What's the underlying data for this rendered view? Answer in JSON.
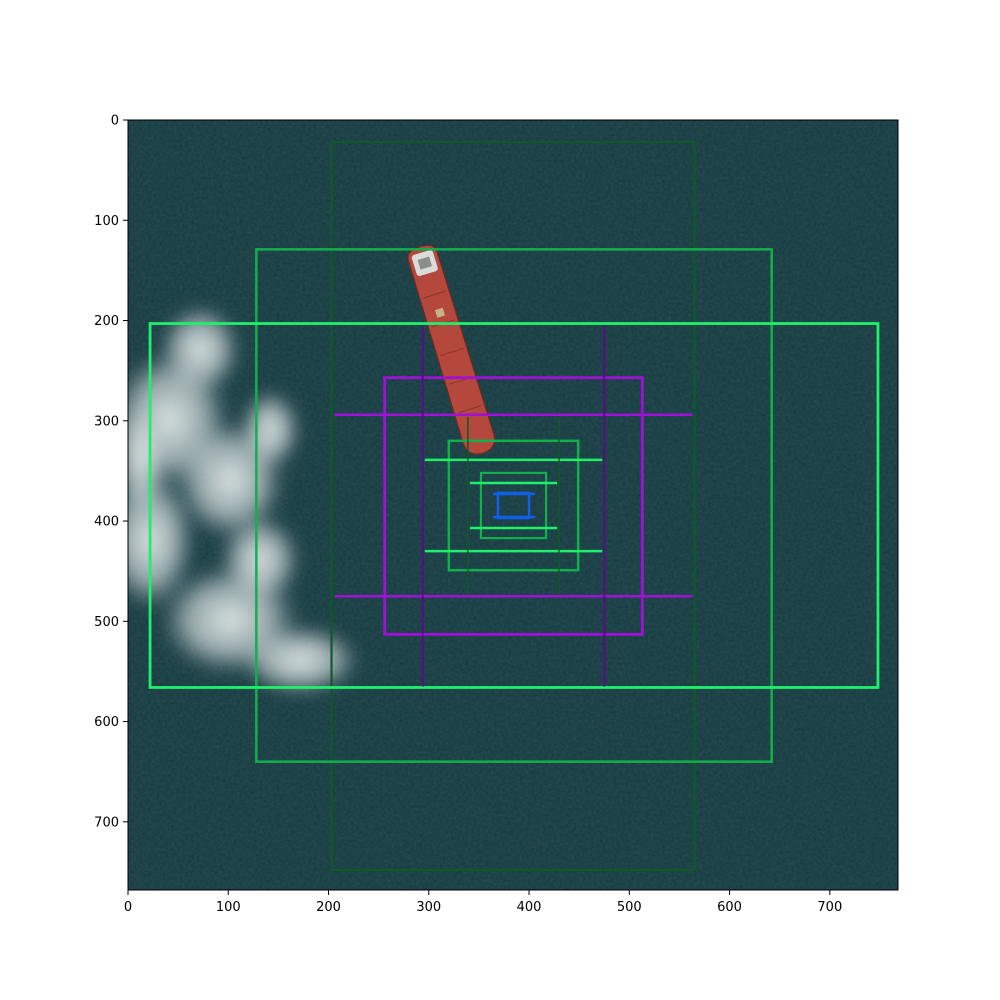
{
  "image": {
    "description_hidden": "",
    "width_units": 768,
    "height_units": 768
  },
  "axes": {
    "xlim": [
      0,
      768
    ],
    "ylim": [
      768,
      0
    ],
    "x_ticks": [
      0,
      100,
      200,
      300,
      400,
      500,
      600,
      700
    ],
    "y_ticks": [
      0,
      100,
      200,
      300,
      400,
      500,
      600,
      700
    ],
    "x_tick_labels": [
      "0",
      "100",
      "200",
      "300",
      "400",
      "500",
      "600",
      "700"
    ],
    "y_tick_labels": [
      "0",
      "100",
      "200",
      "300",
      "400",
      "500",
      "600",
      "700"
    ]
  },
  "colors": {
    "water": "#143a40",
    "ship_hull": "#b4483c",
    "cloud": "#dfe6e6",
    "green_dark": "#0e5a2a",
    "green_mid": "#12b04a",
    "green_bright": "#1ef06a",
    "purple": "#a010d8",
    "purple_dark": "#5a0a8a",
    "blue": "#1060e8"
  },
  "annotations": {
    "boxes": [
      {
        "name": "box-dark-green-large",
        "x0": 203,
        "y0": 22,
        "x1": 565,
        "y1": 748,
        "color": "#0e5a2a",
        "width": 2.2
      },
      {
        "name": "box-green-outer",
        "x0": 128,
        "y0": 129,
        "x1": 642,
        "y1": 640,
        "color": "#12b04a",
        "width": 2.5
      },
      {
        "name": "box-bright-green-wide",
        "x0": 22,
        "y0": 203,
        "x1": 748,
        "y1": 566,
        "color": "#1ef06a",
        "width": 2.8
      },
      {
        "name": "box-purple-mid",
        "x0": 256,
        "y0": 257,
        "x1": 513,
        "y1": 513,
        "color": "#a010d8",
        "width": 2.8
      },
      {
        "name": "box-green-inner",
        "x0": 320,
        "y0": 320,
        "x1": 449,
        "y1": 449,
        "color": "#12b04a",
        "width": 2.5
      },
      {
        "name": "box-green-small",
        "x0": 352,
        "y0": 352,
        "x1": 417,
        "y1": 417,
        "color": "#12b04a",
        "width": 2.2
      },
      {
        "name": "box-blue-tiny",
        "x0": 369,
        "y0": 372,
        "x1": 400,
        "y1": 397,
        "color": "#1060e8",
        "width": 2.5
      }
    ],
    "lines": [
      {
        "name": "purple-horizontal-top",
        "x0": 206,
        "y0": 294,
        "x1": 563,
        "y1": 294,
        "color": "#a010d8",
        "width": 2.5
      },
      {
        "name": "purple-horizontal-bottom",
        "x0": 206,
        "y0": 475,
        "x1": 563,
        "y1": 475,
        "color": "#a010d8",
        "width": 2.5
      },
      {
        "name": "purple-vertical-left",
        "x0": 294,
        "y0": 205,
        "x1": 294,
        "y1": 565,
        "color": "#5a0a8a",
        "width": 2
      },
      {
        "name": "purple-vertical-right",
        "x0": 475,
        "y0": 205,
        "x1": 475,
        "y1": 565,
        "color": "#5a0a8a",
        "width": 2
      },
      {
        "name": "green-horizontal-top",
        "x0": 296,
        "y0": 339,
        "x1": 473,
        "y1": 339,
        "color": "#1ef06a",
        "width": 2.5
      },
      {
        "name": "green-horizontal-bottom",
        "x0": 296,
        "y0": 430,
        "x1": 473,
        "y1": 430,
        "color": "#1ef06a",
        "width": 2.5
      },
      {
        "name": "green-vertical-left",
        "x0": 339,
        "y0": 296,
        "x1": 339,
        "y1": 473,
        "color": "#0e5a2a",
        "width": 1.5
      },
      {
        "name": "green-vertical-right",
        "x0": 430,
        "y0": 296,
        "x1": 430,
        "y1": 473,
        "color": "#0e5a2a",
        "width": 1.5
      },
      {
        "name": "green-horizontal-inner-top",
        "x0": 341,
        "y0": 362,
        "x1": 428,
        "y1": 362,
        "color": "#1ef06a",
        "width": 2.5
      },
      {
        "name": "green-horizontal-inner-bottom",
        "x0": 341,
        "y0": 407,
        "x1": 428,
        "y1": 407,
        "color": "#1ef06a",
        "width": 2.5
      },
      {
        "name": "blue-horizontal-top",
        "x0": 364,
        "y0": 373,
        "x1": 406,
        "y1": 373,
        "color": "#1060e8",
        "width": 2.5
      },
      {
        "name": "blue-horizontal-bottom",
        "x0": 364,
        "y0": 396,
        "x1": 406,
        "y1": 396,
        "color": "#1060e8",
        "width": 2.5
      }
    ]
  }
}
